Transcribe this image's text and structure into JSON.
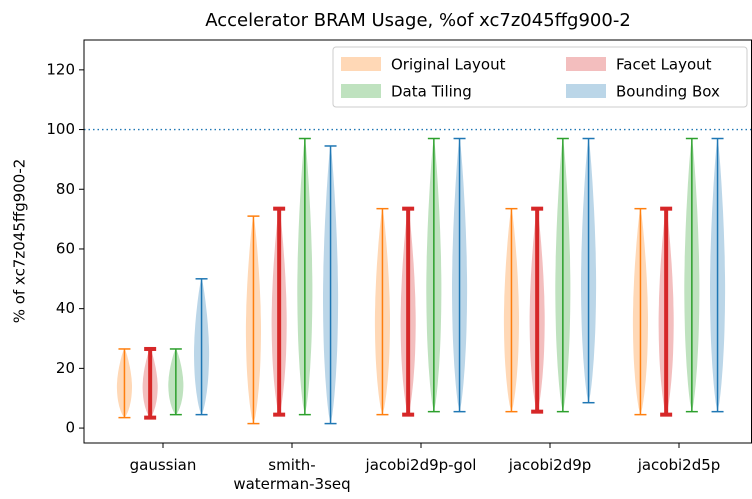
{
  "chart_data": {
    "type": "violin",
    "title": "Accelerator BRAM Usage, %of xc7z045ffg900-2",
    "y_label": "% of xc7z045ffg900-2",
    "categories": [
      "gaussian",
      "smith-\nwaterman-3seq",
      "jacobi2d9p-gol",
      "jacobi2d9p",
      "jacobi2d5p"
    ],
    "series": [
      {
        "name": "Original Layout",
        "color": "#ff7f0e",
        "min": [
          3.5,
          1.5,
          4.5,
          5.5,
          4.5
        ],
        "max": [
          26.5,
          71,
          73.5,
          73.5,
          73.5
        ]
      },
      {
        "name": "Facet Layout",
        "color": "#d62728",
        "min": [
          3.5,
          4.5,
          4.5,
          5.5,
          4.5
        ],
        "max": [
          26.5,
          73.5,
          73.5,
          73.5,
          73.5
        ]
      },
      {
        "name": "Data Tiling",
        "color": "#2ca02c",
        "min": [
          4.5,
          4.5,
          5.5,
          5.5,
          5.5
        ],
        "max": [
          26.5,
          97,
          97,
          97,
          97
        ]
      },
      {
        "name": "Bounding Box",
        "color": "#1f77b4",
        "min": [
          4.5,
          1.5,
          5.5,
          8.5,
          5.5
        ],
        "max": [
          50,
          94.5,
          97,
          97,
          97
        ]
      }
    ],
    "reference_line": 100,
    "ylim": [
      -5,
      130
    ],
    "yticks": [
      0,
      20,
      40,
      60,
      80,
      100,
      120
    ],
    "legend": "upper right",
    "legend_columns": 2
  }
}
